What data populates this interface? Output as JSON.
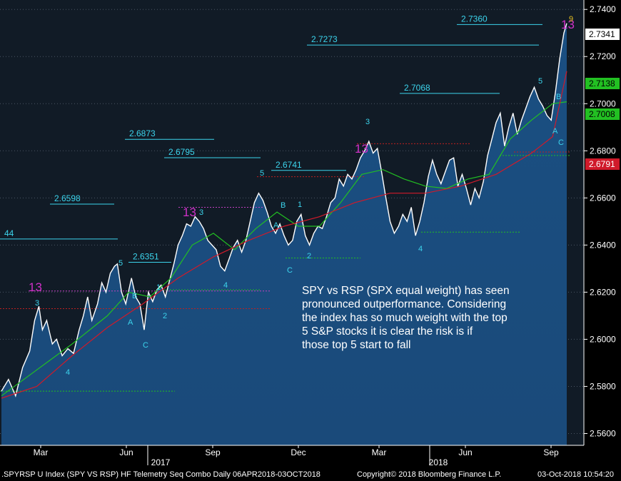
{
  "chart_data": {
    "type": "line",
    "title": "",
    "ylim": [
      2.555,
      2.744
    ],
    "y_ticks": [
      "2.7400",
      "2.7200",
      "2.7000",
      "2.6800",
      "2.6600",
      "2.6400",
      "2.6200",
      "2.6000",
      "2.5800",
      "2.5600"
    ],
    "x_ticks": [
      "Mar",
      "Jun",
      "Sep",
      "Dec",
      "Mar",
      "Jun",
      "Sep"
    ],
    "year_labels": [
      "2017",
      "2018"
    ],
    "series": [
      {
        "color": "#ffffff",
        "values": [
          [
            0.0,
            2.578
          ],
          [
            0.01,
            2.583
          ],
          [
            0.02,
            2.576
          ],
          [
            0.03,
            2.588
          ],
          [
            0.04,
            2.595
          ],
          [
            0.047,
            2.608
          ],
          [
            0.053,
            2.614
          ],
          [
            0.058,
            2.604
          ],
          [
            0.064,
            2.608
          ],
          [
            0.072,
            2.598
          ],
          [
            0.078,
            2.6
          ],
          [
            0.086,
            2.593
          ],
          [
            0.094,
            2.596
          ],
          [
            0.102,
            2.594
          ],
          [
            0.11,
            2.604
          ],
          [
            0.116,
            2.61
          ],
          [
            0.122,
            2.618
          ],
          [
            0.128,
            2.608
          ],
          [
            0.136,
            2.615
          ],
          [
            0.142,
            2.624
          ],
          [
            0.148,
            2.62
          ],
          [
            0.154,
            2.628
          ],
          [
            0.16,
            2.631
          ],
          [
            0.164,
            2.632
          ],
          [
            0.17,
            2.62
          ],
          [
            0.176,
            2.615
          ],
          [
            0.184,
            2.626
          ],
          [
            0.19,
            2.618
          ],
          [
            0.196,
            2.615
          ],
          [
            0.202,
            2.604
          ],
          [
            0.208,
            2.62
          ],
          [
            0.214,
            2.616
          ],
          [
            0.22,
            2.621
          ],
          [
            0.226,
            2.623
          ],
          [
            0.232,
            2.618
          ],
          [
            0.238,
            2.625
          ],
          [
            0.244,
            2.632
          ],
          [
            0.25,
            2.64
          ],
          [
            0.256,
            2.644
          ],
          [
            0.262,
            2.649
          ],
          [
            0.268,
            2.648
          ],
          [
            0.274,
            2.652
          ],
          [
            0.28,
            2.65
          ],
          [
            0.286,
            2.647
          ],
          [
            0.292,
            2.642
          ],
          [
            0.298,
            2.64
          ],
          [
            0.304,
            2.638
          ],
          [
            0.31,
            2.631
          ],
          [
            0.316,
            2.629
          ],
          [
            0.322,
            2.634
          ],
          [
            0.328,
            2.639
          ],
          [
            0.334,
            2.642
          ],
          [
            0.34,
            2.637
          ],
          [
            0.346,
            2.642
          ],
          [
            0.352,
            2.65
          ],
          [
            0.358,
            2.658
          ],
          [
            0.364,
            2.662
          ],
          [
            0.37,
            2.659
          ],
          [
            0.376,
            2.654
          ],
          [
            0.382,
            2.648
          ],
          [
            0.388,
            2.645
          ],
          [
            0.394,
            2.649
          ],
          [
            0.4,
            2.644
          ],
          [
            0.406,
            2.64
          ],
          [
            0.412,
            2.642
          ],
          [
            0.418,
            2.65
          ],
          [
            0.424,
            2.653
          ],
          [
            0.43,
            2.644
          ],
          [
            0.436,
            2.64
          ],
          [
            0.442,
            2.645
          ],
          [
            0.448,
            2.648
          ],
          [
            0.454,
            2.647
          ],
          [
            0.46,
            2.652
          ],
          [
            0.466,
            2.658
          ],
          [
            0.472,
            2.66
          ],
          [
            0.478,
            2.668
          ],
          [
            0.484,
            2.665
          ],
          [
            0.49,
            2.67
          ],
          [
            0.496,
            2.668
          ],
          [
            0.502,
            2.672
          ],
          [
            0.508,
            2.677
          ],
          [
            0.514,
            2.68
          ],
          [
            0.52,
            2.684
          ],
          [
            0.526,
            2.679
          ],
          [
            0.532,
            2.681
          ],
          [
            0.538,
            2.671
          ],
          [
            0.544,
            2.66
          ],
          [
            0.55,
            2.65
          ],
          [
            0.556,
            2.645
          ],
          [
            0.562,
            2.648
          ],
          [
            0.568,
            2.653
          ],
          [
            0.574,
            2.65
          ],
          [
            0.58,
            2.656
          ],
          [
            0.586,
            2.644
          ],
          [
            0.592,
            2.65
          ],
          [
            0.598,
            2.658
          ],
          [
            0.604,
            2.669
          ],
          [
            0.61,
            2.676
          ],
          [
            0.616,
            2.67
          ],
          [
            0.622,
            2.666
          ],
          [
            0.628,
            2.671
          ],
          [
            0.634,
            2.676
          ],
          [
            0.64,
            2.677
          ],
          [
            0.646,
            2.665
          ],
          [
            0.652,
            2.67
          ],
          [
            0.658,
            2.664
          ],
          [
            0.664,
            2.657
          ],
          [
            0.67,
            2.664
          ],
          [
            0.676,
            2.66
          ],
          [
            0.682,
            2.667
          ],
          [
            0.688,
            2.678
          ],
          [
            0.694,
            2.685
          ],
          [
            0.7,
            2.692
          ],
          [
            0.706,
            2.696
          ],
          [
            0.712,
            2.682
          ],
          [
            0.718,
            2.69
          ],
          [
            0.724,
            2.696
          ],
          [
            0.73,
            2.687
          ],
          [
            0.736,
            2.693
          ],
          [
            0.742,
            2.698
          ],
          [
            0.748,
            2.703
          ],
          [
            0.754,
            2.707
          ],
          [
            0.76,
            2.702
          ],
          [
            0.766,
            2.699
          ],
          [
            0.772,
            2.695
          ],
          [
            0.778,
            2.693
          ],
          [
            0.784,
            2.705
          ],
          [
            0.79,
            2.719
          ],
          [
            0.796,
            2.73
          ],
          [
            0.8,
            2.7341
          ]
        ]
      },
      {
        "color": "#22c022",
        "values": [
          [
            0.0,
            2.576
          ],
          [
            0.05,
            2.587
          ],
          [
            0.1,
            2.598
          ],
          [
            0.15,
            2.61
          ],
          [
            0.18,
            2.62
          ],
          [
            0.21,
            2.618
          ],
          [
            0.24,
            2.626
          ],
          [
            0.27,
            2.64
          ],
          [
            0.3,
            2.645
          ],
          [
            0.33,
            2.638
          ],
          [
            0.36,
            2.647
          ],
          [
            0.39,
            2.654
          ],
          [
            0.42,
            2.648
          ],
          [
            0.45,
            2.648
          ],
          [
            0.48,
            2.658
          ],
          [
            0.51,
            2.67
          ],
          [
            0.54,
            2.672
          ],
          [
            0.57,
            2.668
          ],
          [
            0.6,
            2.665
          ],
          [
            0.63,
            2.664
          ],
          [
            0.66,
            2.668
          ],
          [
            0.69,
            2.67
          ],
          [
            0.72,
            2.685
          ],
          [
            0.75,
            2.693
          ],
          [
            0.78,
            2.7
          ],
          [
            0.8,
            2.7008
          ]
        ]
      },
      {
        "color": "#d01a2a",
        "values": [
          [
            0.0,
            2.575
          ],
          [
            0.05,
            2.58
          ],
          [
            0.1,
            2.593
          ],
          [
            0.15,
            2.605
          ],
          [
            0.2,
            2.615
          ],
          [
            0.25,
            2.626
          ],
          [
            0.3,
            2.635
          ],
          [
            0.35,
            2.642
          ],
          [
            0.4,
            2.648
          ],
          [
            0.45,
            2.652
          ],
          [
            0.5,
            2.658
          ],
          [
            0.55,
            2.662
          ],
          [
            0.6,
            2.662
          ],
          [
            0.65,
            2.665
          ],
          [
            0.7,
            2.67
          ],
          [
            0.75,
            2.679
          ],
          [
            0.78,
            2.686
          ],
          [
            0.8,
            2.7138
          ]
        ]
      }
    ],
    "level_labels": [
      {
        "text": "2.7360",
        "y": 2.736
      },
      {
        "text": "2.7273",
        "y": 2.7273
      },
      {
        "text": "2.7068",
        "y": 2.7068
      },
      {
        "text": "2.6873",
        "y": 2.6873
      },
      {
        "text": "2.6795",
        "y": 2.6795
      },
      {
        "text": "2.6741",
        "y": 2.6741
      },
      {
        "text": "2.6598",
        "y": 2.6598
      },
      {
        "text": "2.6351",
        "y": 2.6351
      },
      {
        "text": "44",
        "y": 2.645
      }
    ],
    "price_tags": [
      {
        "text": "2.7341",
        "bg": "#ffffff",
        "fg": "#000000"
      },
      {
        "text": "2.7138",
        "bg": "#22c022",
        "fg": "#000000"
      },
      {
        "text": "2.7008",
        "bg": "#22c022",
        "fg": "#000000"
      },
      {
        "text": "2.6791",
        "bg": "#d01a2a",
        "fg": "#ffffff"
      }
    ],
    "count_labels": [
      "13",
      "3",
      "4",
      "5",
      "A",
      "B",
      "C",
      "1",
      "2",
      "13",
      "3",
      "4",
      "5",
      "A",
      "B",
      "C",
      "1",
      "2",
      "13",
      "3",
      "4",
      "5",
      "A",
      "B",
      "C",
      "13",
      "9"
    ],
    "annotation_lines": [
      "SPY vs RSP (SPX equal weight) has seen",
      "pronounced outperformance.  Considering",
      "the index has so much weight with the top",
      "5 S&P stocks it is clear the risk is if",
      "those top 5 start to fall"
    ],
    "colors": {
      "background_top": "#10202e",
      "background_bottom": "#1a4a7a",
      "label_cyan": "#3cd4ec",
      "magenta": "#d030c8"
    }
  },
  "footer": {
    "left": ".SPYRSP U Index (SPY VS RSP) HF Telemetry Seq Combo  Daily 06APR2018-03OCT2018",
    "center": "Copyright© 2018 Bloomberg Finance L.P.",
    "right": "03-Oct-2018 10:54:20"
  }
}
